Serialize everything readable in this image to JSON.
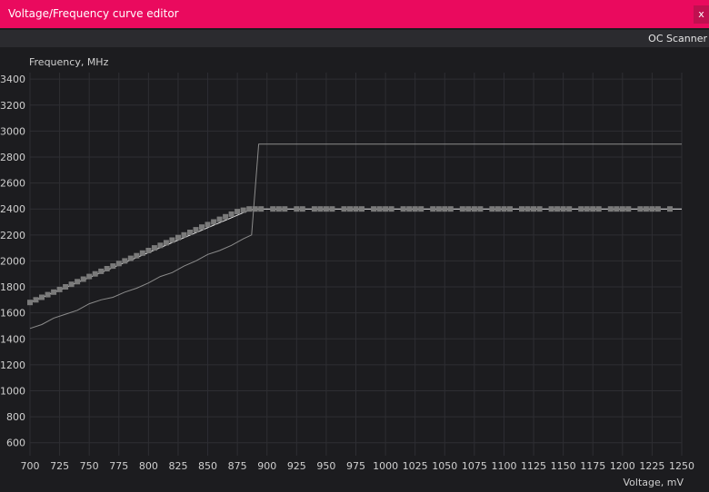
{
  "window": {
    "title": "Voltage/Frequency curve editor",
    "close_label": "x"
  },
  "toolbar": {
    "oc_scanner_label": "OC Scanner"
  },
  "colors": {
    "title_bar": "#ea0a5e",
    "background": "#1c1c1f",
    "grid": "#2e2e33",
    "curve": "#b0b0b0",
    "point": "#7a7a7a"
  },
  "chart_data": {
    "type": "line",
    "title": "",
    "ylabel": "Frequency, MHz",
    "xlabel": "Voltage, mV",
    "xlim": [
      700,
      1250
    ],
    "ylim": [
      500,
      3450
    ],
    "x_ticks": [
      700,
      725,
      750,
      775,
      800,
      825,
      850,
      875,
      900,
      925,
      950,
      975,
      1000,
      1025,
      1050,
      1075,
      1100,
      1125,
      1150,
      1175,
      1200,
      1225,
      1250
    ],
    "y_ticks": [
      600,
      800,
      1000,
      1200,
      1400,
      1600,
      1800,
      2000,
      2200,
      2400,
      2600,
      2800,
      3000,
      3200,
      3400
    ],
    "grid": true,
    "series": [
      {
        "name": "",
        "role": "default-curve",
        "x": [
          700,
          710,
          720,
          730,
          740,
          750,
          760,
          770,
          780,
          790,
          800,
          810,
          820,
          830,
          840,
          850,
          860,
          870,
          880,
          887,
          893,
          900,
          950,
          1000,
          1050,
          1100,
          1150,
          1200,
          1250
        ],
        "y": [
          1480,
          1510,
          1560,
          1590,
          1620,
          1670,
          1700,
          1720,
          1760,
          1790,
          1830,
          1880,
          1910,
          1960,
          2000,
          2050,
          2080,
          2120,
          2170,
          2200,
          2900,
          2900,
          2900,
          2900,
          2900,
          2900,
          2900,
          2900,
          2900
        ]
      },
      {
        "name": "",
        "role": "edited-curve",
        "x": [
          700,
          885,
          890,
          1250
        ],
        "y": [
          1680,
          2390,
          2400,
          2400
        ]
      }
    ],
    "points": {
      "x": [
        700,
        705,
        710,
        715,
        720,
        725,
        730,
        735,
        740,
        745,
        750,
        755,
        760,
        765,
        770,
        775,
        780,
        785,
        790,
        795,
        800,
        805,
        810,
        815,
        820,
        825,
        830,
        835,
        840,
        845,
        850,
        855,
        860,
        865,
        870,
        875,
        880,
        885,
        890,
        895,
        905,
        910,
        915,
        925,
        930,
        940,
        945,
        950,
        955,
        965,
        970,
        975,
        980,
        990,
        995,
        1000,
        1005,
        1015,
        1020,
        1025,
        1030,
        1040,
        1045,
        1050,
        1055,
        1065,
        1070,
        1075,
        1080,
        1090,
        1095,
        1100,
        1105,
        1115,
        1120,
        1125,
        1130,
        1140,
        1145,
        1150,
        1155,
        1165,
        1170,
        1175,
        1180,
        1190,
        1195,
        1200,
        1205,
        1215,
        1220,
        1225,
        1230,
        1240
      ],
      "y": [
        1680,
        1700,
        1720,
        1740,
        1760,
        1780,
        1800,
        1820,
        1840,
        1860,
        1880,
        1900,
        1920,
        1940,
        1960,
        1980,
        2000,
        2020,
        2040,
        2060,
        2080,
        2100,
        2120,
        2140,
        2160,
        2180,
        2200,
        2220,
        2240,
        2260,
        2280,
        2300,
        2320,
        2340,
        2360,
        2380,
        2390,
        2400,
        2400,
        2400,
        2400,
        2400,
        2400,
        2400,
        2400,
        2400,
        2400,
        2400,
        2400,
        2400,
        2400,
        2400,
        2400,
        2400,
        2400,
        2400,
        2400,
        2400,
        2400,
        2400,
        2400,
        2400,
        2400,
        2400,
        2400,
        2400,
        2400,
        2400,
        2400,
        2400,
        2400,
        2400,
        2400,
        2400,
        2400,
        2400,
        2400,
        2400,
        2400,
        2400,
        2400,
        2400,
        2400,
        2400,
        2400,
        2400,
        2400,
        2400,
        2400,
        2400,
        2400,
        2400,
        2400,
        2400
      ]
    }
  }
}
